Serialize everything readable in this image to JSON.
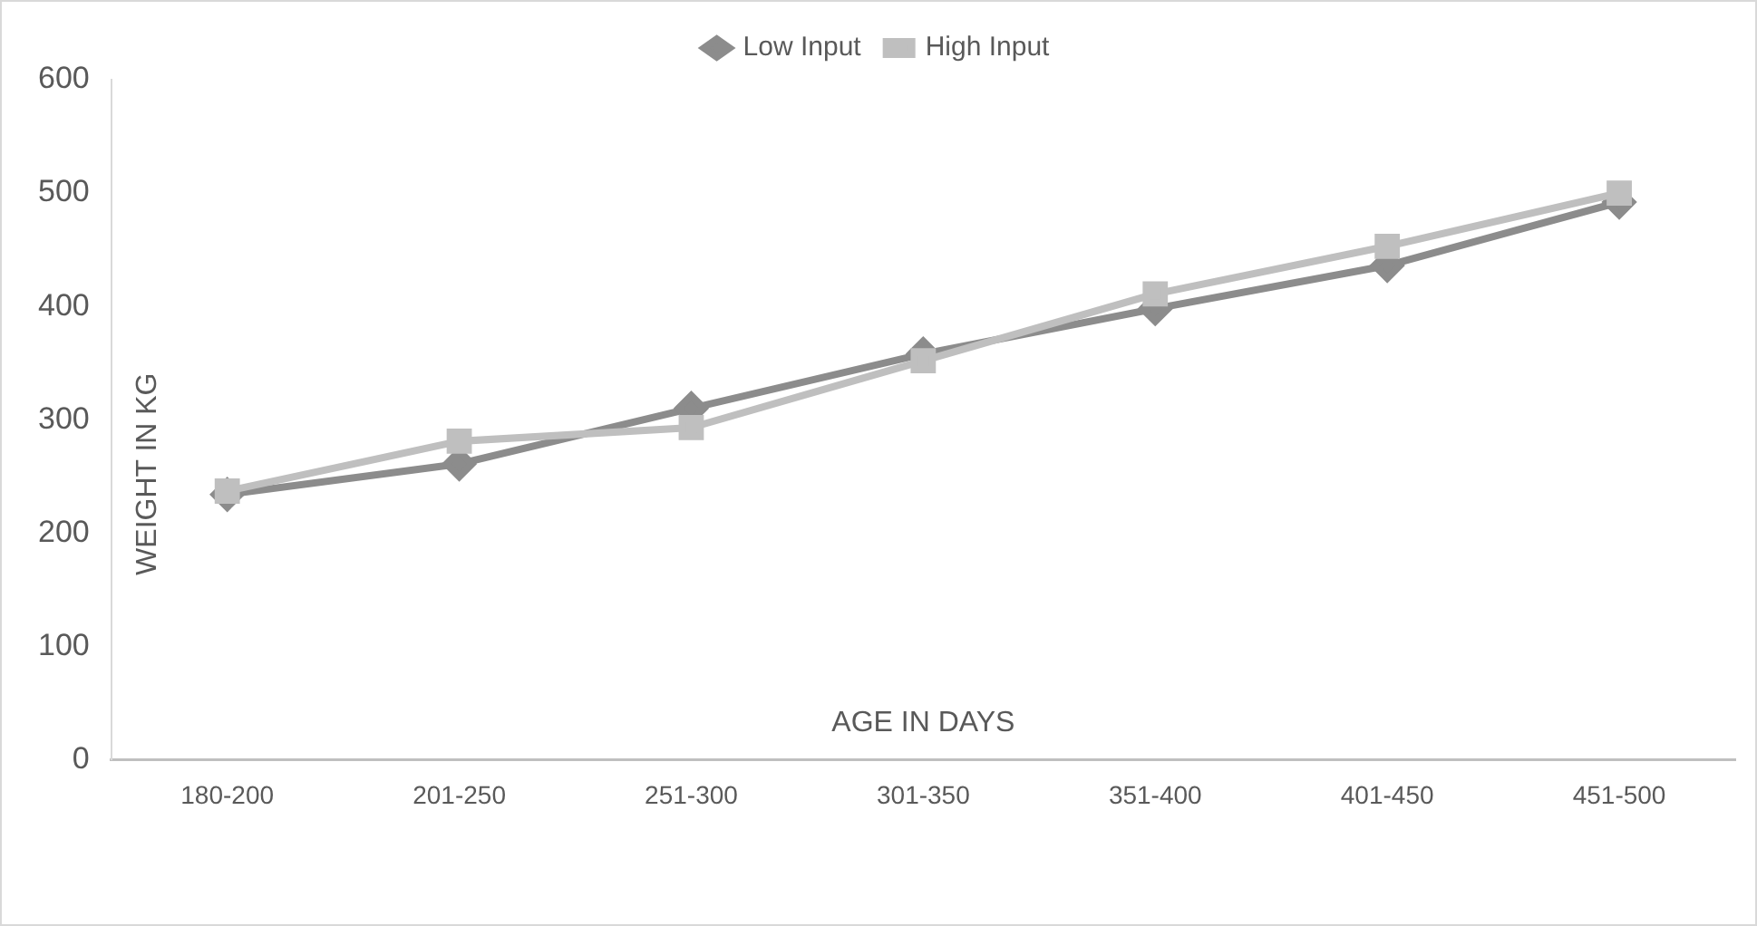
{
  "chart_data": {
    "type": "line",
    "xlabel": "AGE IN DAYS",
    "ylabel": "WEIGHT IN KG",
    "categories": [
      "180-200",
      "201-250",
      "251-300",
      "301-350",
      "351-400",
      "401-450",
      "451-500"
    ],
    "series": [
      {
        "name": "Low Input",
        "color": "#8c8c8c",
        "marker": "diamond",
        "values": [
          234,
          261,
          310,
          358,
          398,
          436,
          492
        ]
      },
      {
        "name": "High Input",
        "color": "#bfbfbf",
        "marker": "square",
        "values": [
          237,
          281,
          293,
          352,
          411,
          453,
          500
        ]
      }
    ],
    "ylim": [
      0,
      600
    ],
    "yticks": [
      0,
      100,
      200,
      300,
      400,
      500,
      600
    ],
    "grid": false,
    "legend": "top",
    "line_style": "solid"
  }
}
